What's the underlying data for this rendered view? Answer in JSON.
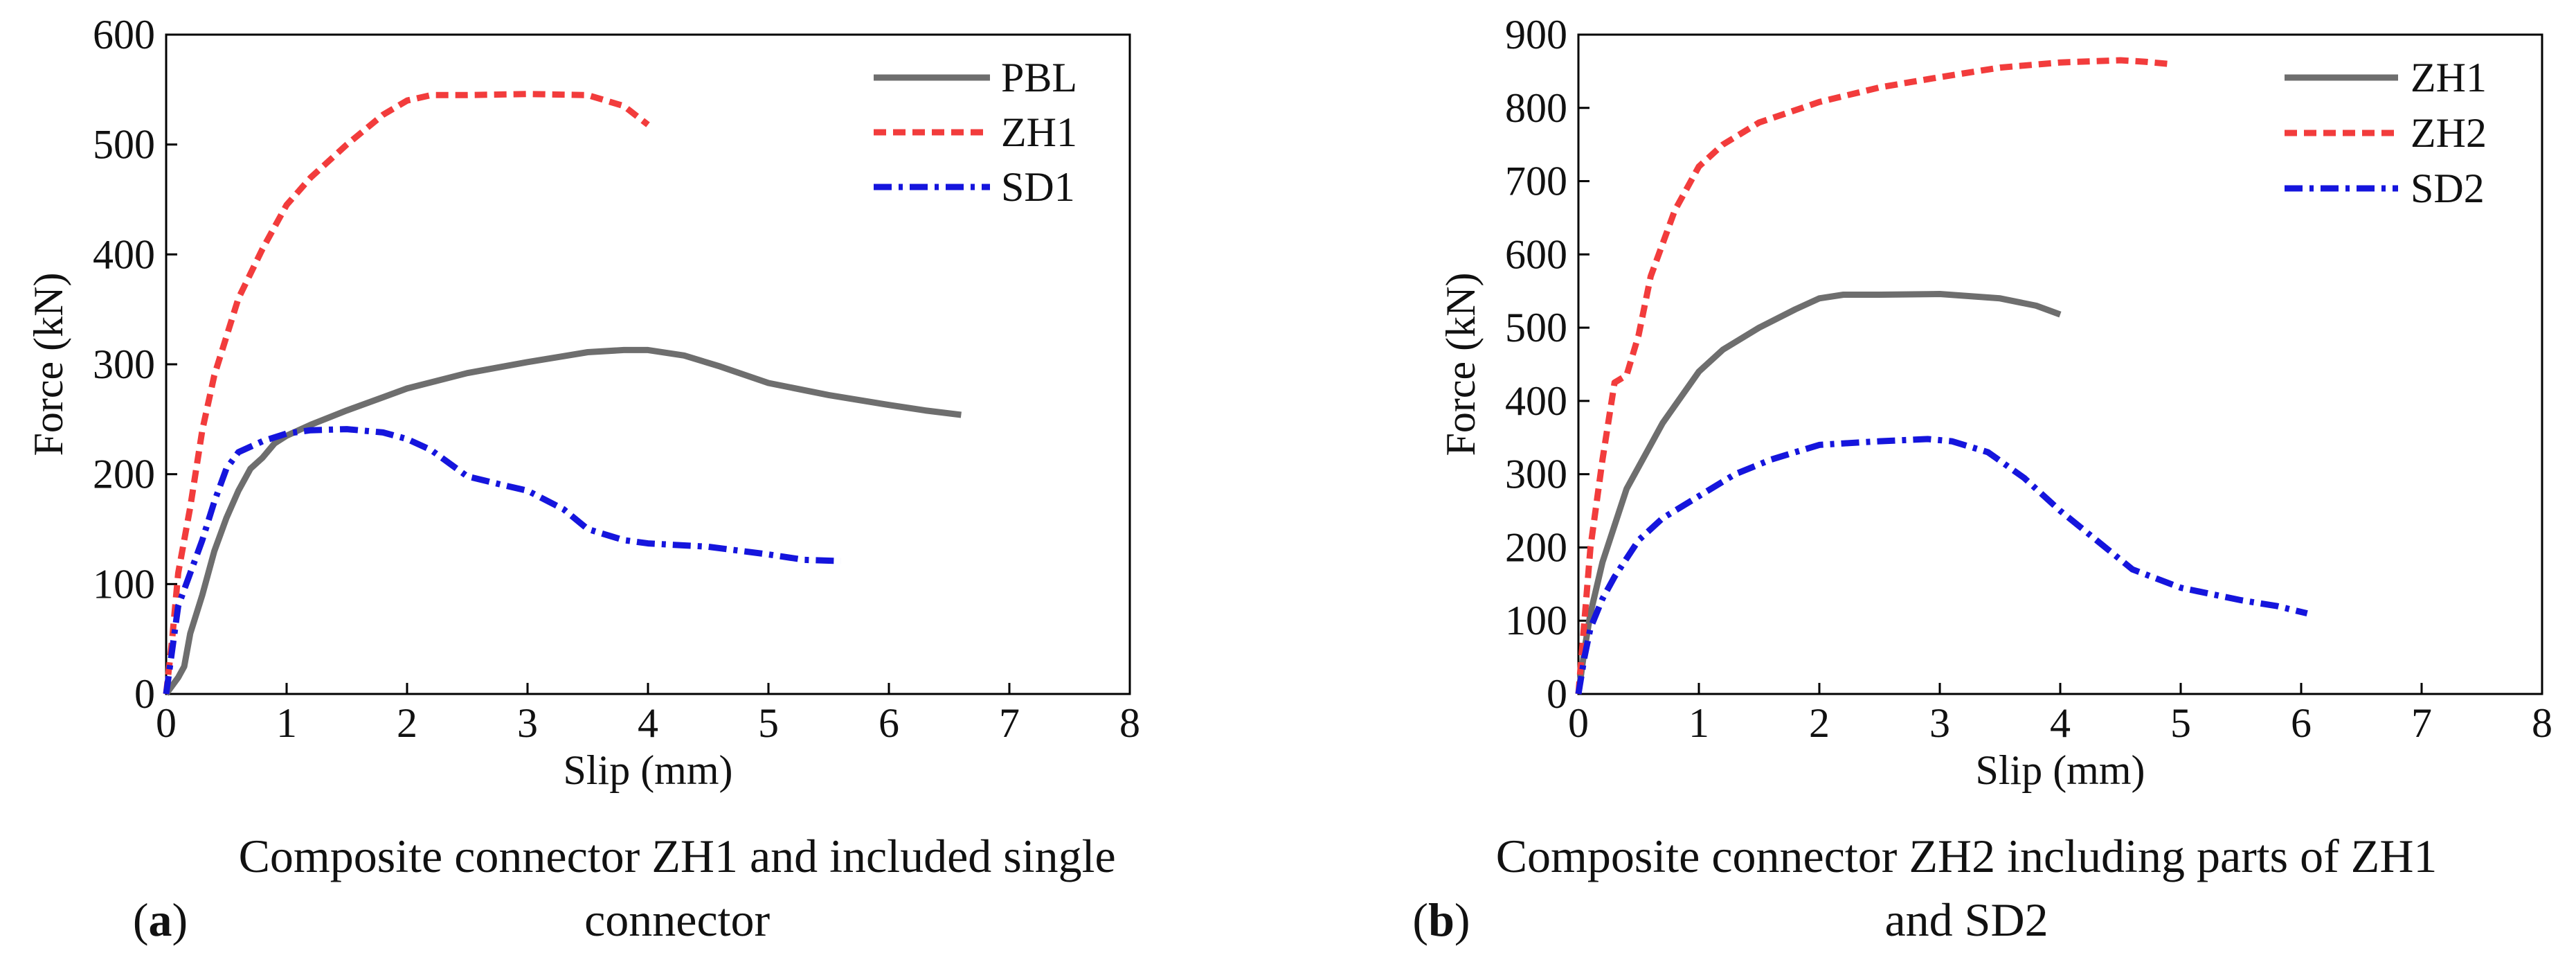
{
  "chart_data": [
    {
      "type": "line",
      "id": "a",
      "xlabel": "Slip (mm)",
      "ylabel": "Force (kN)",
      "xlim": [
        0,
        8
      ],
      "ylim": [
        0,
        600
      ],
      "xticks": [
        0,
        1,
        2,
        3,
        4,
        5,
        6,
        7,
        8
      ],
      "yticks": [
        0,
        100,
        200,
        300,
        400,
        500,
        600
      ],
      "legend_position": "top-right",
      "caption": {
        "letter": "a",
        "text": "Composite connector ZH1 and included single connector"
      },
      "series": [
        {
          "name": "PBL",
          "color": "#6e6e6e",
          "dash": "solid",
          "points": [
            [
              0,
              0
            ],
            [
              0.1,
              15
            ],
            [
              0.15,
              25
            ],
            [
              0.2,
              55
            ],
            [
              0.3,
              90
            ],
            [
              0.4,
              130
            ],
            [
              0.5,
              160
            ],
            [
              0.6,
              185
            ],
            [
              0.7,
              205
            ],
            [
              0.8,
              215
            ],
            [
              0.9,
              228
            ],
            [
              1.0,
              235
            ],
            [
              1.2,
              245
            ],
            [
              1.5,
              258
            ],
            [
              1.8,
              270
            ],
            [
              2.0,
              278
            ],
            [
              2.5,
              292
            ],
            [
              3.0,
              302
            ],
            [
              3.5,
              311
            ],
            [
              3.8,
              313
            ],
            [
              4.0,
              313
            ],
            [
              4.3,
              308
            ],
            [
              4.6,
              298
            ],
            [
              5.0,
              283
            ],
            [
              5.5,
              272
            ],
            [
              6.0,
              263
            ],
            [
              6.3,
              258
            ],
            [
              6.6,
              254
            ]
          ]
        },
        {
          "name": "ZH1",
          "color": "#f23c3c",
          "dash": "dashed",
          "points": [
            [
              0,
              0
            ],
            [
              0.05,
              50
            ],
            [
              0.1,
              110
            ],
            [
              0.2,
              170
            ],
            [
              0.3,
              240
            ],
            [
              0.4,
              290
            ],
            [
              0.5,
              325
            ],
            [
              0.6,
              360
            ],
            [
              0.8,
              405
            ],
            [
              1.0,
              445
            ],
            [
              1.2,
              470
            ],
            [
              1.5,
              500
            ],
            [
              1.8,
              527
            ],
            [
              2.0,
              540
            ],
            [
              2.2,
              545
            ],
            [
              2.5,
              545
            ],
            [
              3.0,
              546
            ],
            [
              3.5,
              545
            ],
            [
              3.8,
              535
            ],
            [
              4.0,
              518
            ]
          ]
        },
        {
          "name": "SD1",
          "color": "#1515dd",
          "dash": "dashdot",
          "points": [
            [
              0,
              0
            ],
            [
              0.05,
              40
            ],
            [
              0.1,
              80
            ],
            [
              0.2,
              110
            ],
            [
              0.3,
              140
            ],
            [
              0.4,
              175
            ],
            [
              0.5,
              205
            ],
            [
              0.6,
              220
            ],
            [
              0.8,
              230
            ],
            [
              1.0,
              237
            ],
            [
              1.2,
              240
            ],
            [
              1.5,
              241
            ],
            [
              1.8,
              238
            ],
            [
              2.0,
              232
            ],
            [
              2.2,
              222
            ],
            [
              2.5,
              198
            ],
            [
              2.8,
              190
            ],
            [
              3.0,
              185
            ],
            [
              3.3,
              168
            ],
            [
              3.5,
              150
            ],
            [
              3.8,
              140
            ],
            [
              4.0,
              137
            ],
            [
              4.5,
              134
            ],
            [
              5.0,
              127
            ],
            [
              5.3,
              122
            ],
            [
              5.6,
              121
            ]
          ]
        }
      ]
    },
    {
      "type": "line",
      "id": "b",
      "xlabel": "Slip (mm)",
      "ylabel": "Force (kN)",
      "xlim": [
        0,
        8
      ],
      "ylim": [
        0,
        900
      ],
      "xticks": [
        0,
        1,
        2,
        3,
        4,
        5,
        6,
        7,
        8
      ],
      "yticks": [
        0,
        100,
        200,
        300,
        400,
        500,
        600,
        700,
        800,
        900
      ],
      "legend_position": "top-right",
      "caption": {
        "letter": "b",
        "text": "Composite connector ZH2 including parts of ZH1 and SD2"
      },
      "series": [
        {
          "name": "ZH1",
          "color": "#6e6e6e",
          "dash": "solid",
          "points": [
            [
              0,
              0
            ],
            [
              0.05,
              60
            ],
            [
              0.1,
              110
            ],
            [
              0.2,
              180
            ],
            [
              0.3,
              230
            ],
            [
              0.4,
              280
            ],
            [
              0.5,
              310
            ],
            [
              0.7,
              370
            ],
            [
              1.0,
              440
            ],
            [
              1.2,
              470
            ],
            [
              1.5,
              500
            ],
            [
              1.8,
              525
            ],
            [
              2.0,
              540
            ],
            [
              2.2,
              545
            ],
            [
              2.5,
              545
            ],
            [
              3.0,
              546
            ],
            [
              3.5,
              540
            ],
            [
              3.8,
              530
            ],
            [
              4.0,
              518
            ]
          ]
        },
        {
          "name": "ZH2",
          "color": "#f23c3c",
          "dash": "dashed",
          "points": [
            [
              0,
              0
            ],
            [
              0.05,
              100
            ],
            [
              0.1,
              200
            ],
            [
              0.2,
              320
            ],
            [
              0.3,
              425
            ],
            [
              0.4,
              435
            ],
            [
              0.5,
              490
            ],
            [
              0.6,
              570
            ],
            [
              0.8,
              660
            ],
            [
              1.0,
              720
            ],
            [
              1.2,
              750
            ],
            [
              1.5,
              780
            ],
            [
              2.0,
              808
            ],
            [
              2.5,
              828
            ],
            [
              3.0,
              842
            ],
            [
              3.5,
              855
            ],
            [
              4.0,
              862
            ],
            [
              4.5,
              865
            ],
            [
              4.7,
              863
            ],
            [
              4.9,
              860
            ]
          ]
        },
        {
          "name": "SD2",
          "color": "#1515dd",
          "dash": "dashdot",
          "points": [
            [
              0,
              0
            ],
            [
              0.05,
              50
            ],
            [
              0.1,
              90
            ],
            [
              0.2,
              130
            ],
            [
              0.3,
              160
            ],
            [
              0.5,
              210
            ],
            [
              0.7,
              240
            ],
            [
              1.0,
              270
            ],
            [
              1.3,
              300
            ],
            [
              1.6,
              320
            ],
            [
              2.0,
              340
            ],
            [
              2.2,
              342
            ],
            [
              2.5,
              345
            ],
            [
              2.9,
              348
            ],
            [
              3.1,
              345
            ],
            [
              3.4,
              330
            ],
            [
              3.7,
              295
            ],
            [
              4.0,
              250
            ],
            [
              4.3,
              210
            ],
            [
              4.6,
              170
            ],
            [
              5.0,
              145
            ],
            [
              5.5,
              128
            ],
            [
              5.8,
              120
            ],
            [
              6.05,
              110
            ]
          ]
        }
      ]
    }
  ]
}
